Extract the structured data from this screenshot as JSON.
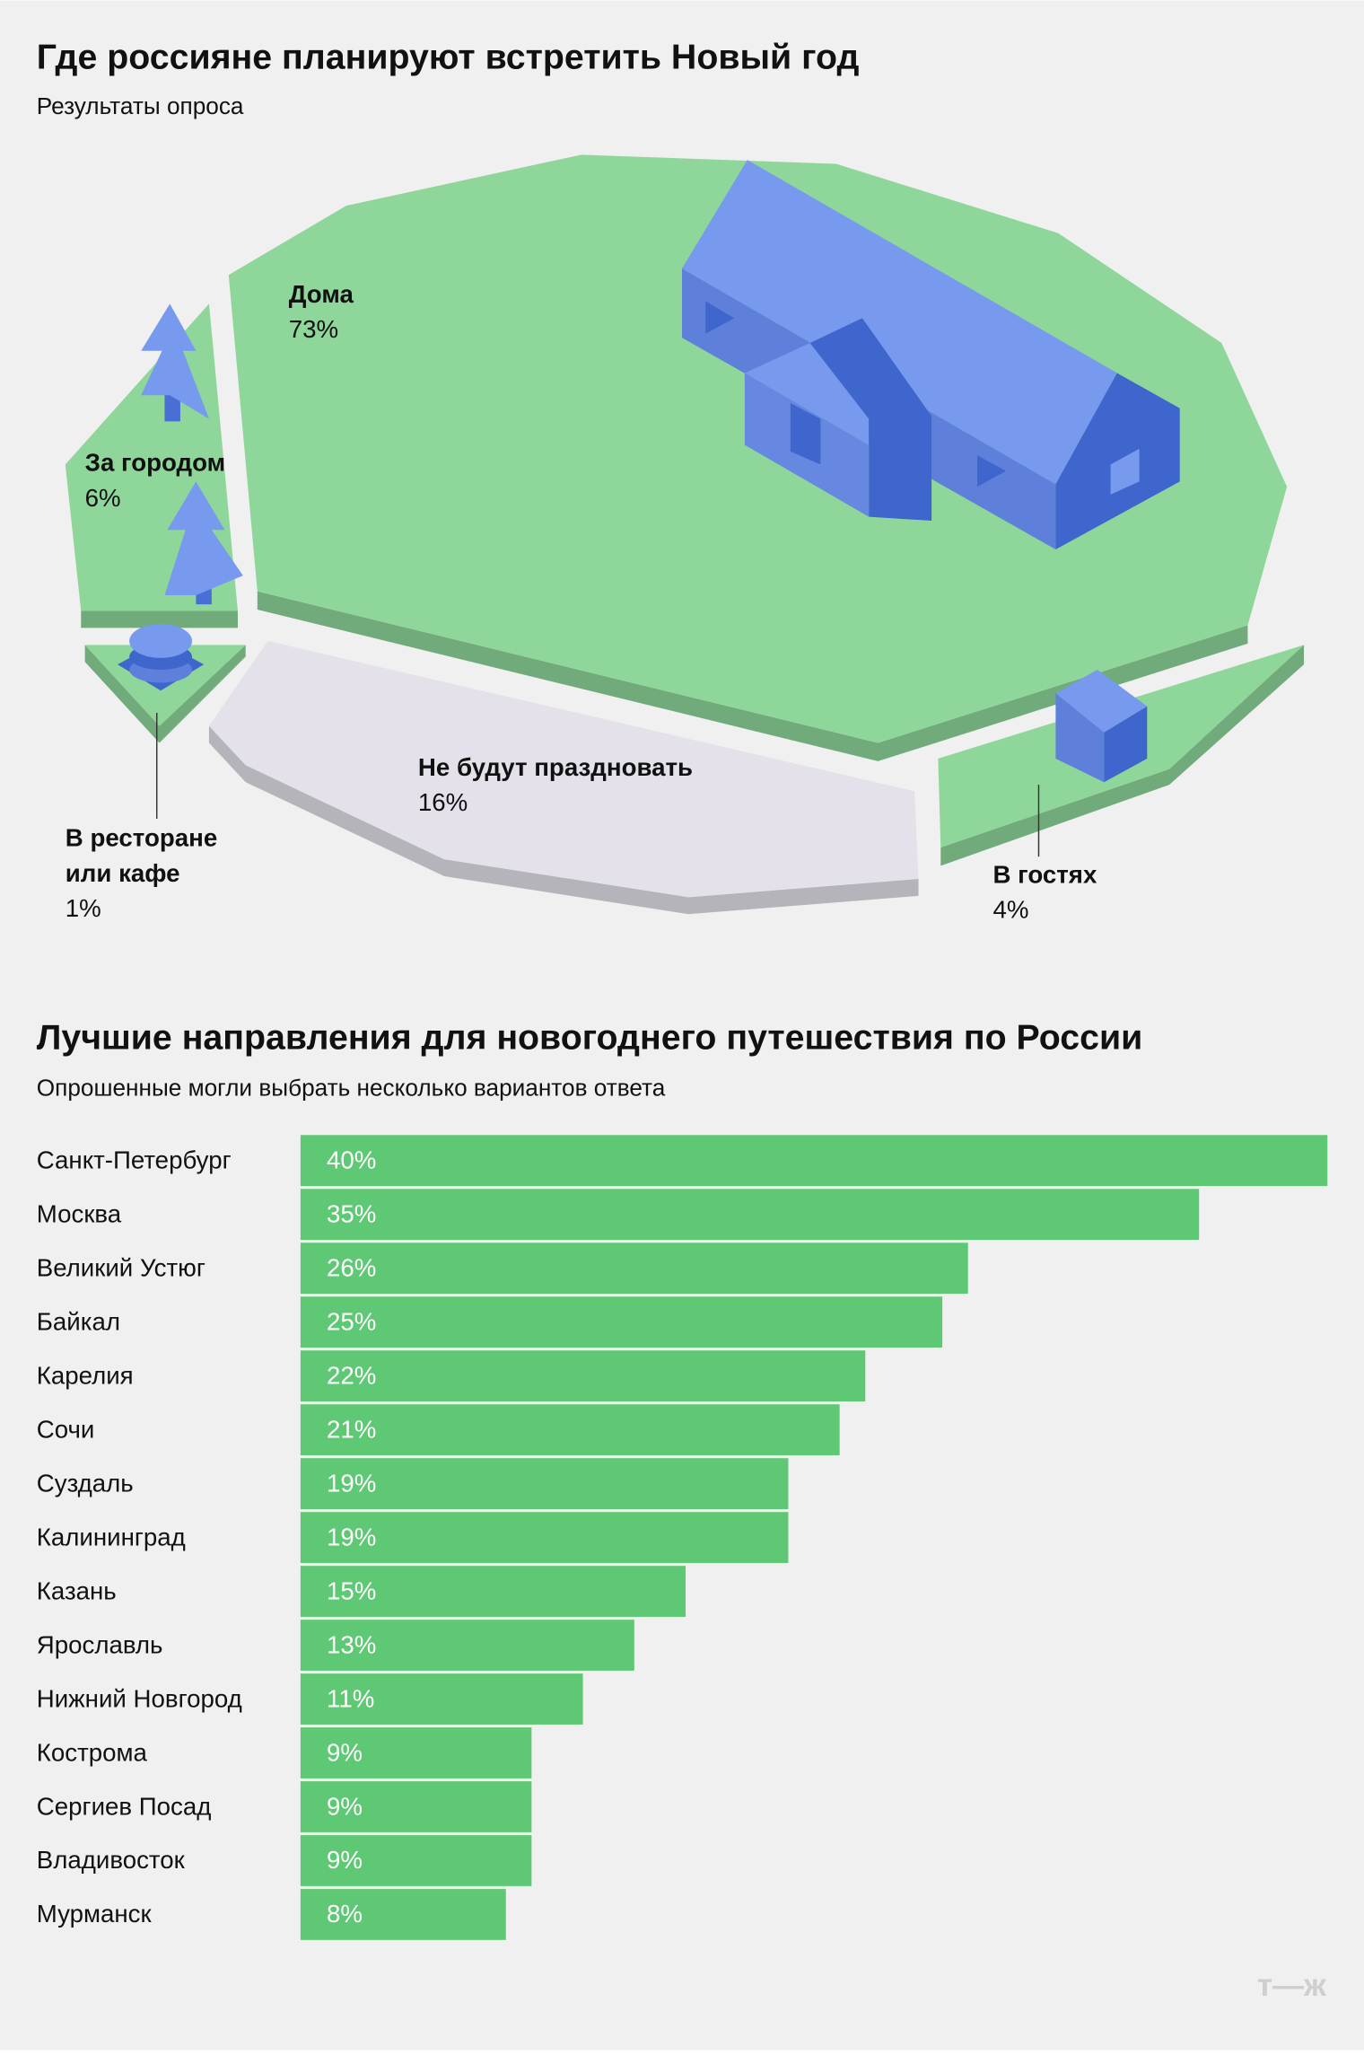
{
  "chart_data": [
    {
      "type": "pie",
      "title": "Где россияне планируют встретить Новый год",
      "subtitle": "Результаты опроса",
      "categories": [
        "Дома",
        "Не будут праздновать",
        "За городом",
        "В гостях",
        "В ресторане или кафе"
      ],
      "values": [
        73,
        16,
        6,
        4,
        1
      ],
      "value_labels": [
        "73%",
        "16%",
        "6%",
        "4%",
        "1%"
      ],
      "colors": [
        "#8fd69a",
        "#e4e1ea",
        "#8fd69a",
        "#8fd69a",
        "#8fd69a"
      ]
    },
    {
      "type": "bar",
      "orientation": "horizontal",
      "title": "Лучшие направления для новогоднего путешествия по России",
      "subtitle": "Опрошенные могли выбрать несколько вариантов ответа",
      "categories": [
        "Санкт-Петербург",
        "Москва",
        "Великий Устюг",
        "Байкал",
        "Карелия",
        "Сочи",
        "Суздаль",
        "Калининград",
        "Казань",
        "Ярославль",
        "Нижний Новгород",
        "Кострома",
        "Сергиев Посад",
        "Владивосток",
        "Мурманск"
      ],
      "values": [
        40,
        35,
        26,
        25,
        22,
        21,
        19,
        19,
        15,
        13,
        11,
        9,
        9,
        9,
        8
      ],
      "value_labels": [
        "40%",
        "35%",
        "26%",
        "25%",
        "22%",
        "21%",
        "19%",
        "19%",
        "15%",
        "13%",
        "11%",
        "9%",
        "9%",
        "9%",
        "8%"
      ],
      "color": "#5fc875",
      "xlim": [
        0,
        40
      ]
    }
  ],
  "footer": {
    "logo": "т—ж"
  }
}
